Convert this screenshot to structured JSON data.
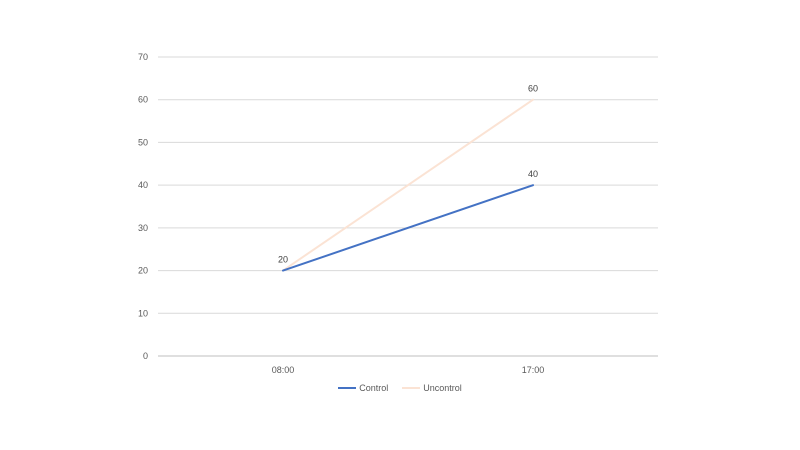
{
  "chart_data": {
    "type": "line",
    "categories": [
      "08:00",
      "17:00"
    ],
    "series": [
      {
        "name": "Control",
        "values": [
          20,
          40
        ],
        "color": "#4472C4",
        "data_labels": [
          "20",
          "40"
        ]
      },
      {
        "name": "Uncontrol",
        "values": [
          20,
          60
        ],
        "color": "#FBE3D4",
        "data_labels": [
          "",
          "60"
        ]
      }
    ],
    "ylim": [
      0,
      70
    ],
    "yticks": [
      0,
      10,
      20,
      30,
      40,
      50,
      60,
      70
    ],
    "grid": true,
    "legend": "bottom",
    "title": "",
    "xlabel": "",
    "ylabel": ""
  }
}
